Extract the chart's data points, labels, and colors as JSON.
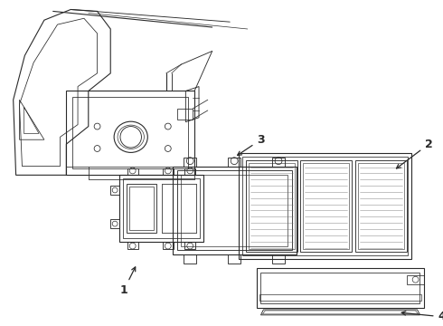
{
  "bg_color": "#ffffff",
  "line_color": "#2a2a2a",
  "lw": 0.8,
  "fig_w": 4.9,
  "fig_h": 3.6,
  "dpi": 100
}
